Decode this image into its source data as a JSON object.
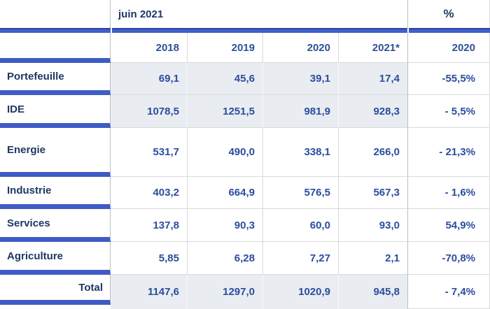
{
  "colors": {
    "bar_blue": "#4060c8",
    "bar_blue_dark_edge": "#2e41a8",
    "header_navy": "#1f3864",
    "value_blue": "#2c4d9e",
    "row_highlight": "#e9edf2",
    "grid_line": "#d9d9d9"
  },
  "chart_data": {
    "type": "table",
    "title": "juin 2021",
    "group_headers": {
      "period": "juin 2021",
      "percent": "%"
    },
    "year_headers": [
      "2018",
      "2019",
      "2020",
      "2021*"
    ],
    "percent_subheader": "2020",
    "rows": [
      {
        "label": "Portefeuille",
        "values": [
          "69,1",
          "45,6",
          "39,1",
          "17,4"
        ],
        "percent": "-55,5%",
        "highlight": true
      },
      {
        "label": "IDE",
        "values": [
          "1078,5",
          "1251,5",
          "981,9",
          "928,3"
        ],
        "percent": "- 5,5%",
        "highlight": true
      },
      {
        "label": "Energie",
        "values": [
          "531,7",
          "490,0",
          "338,1",
          "266,0"
        ],
        "percent": "- 21,3%",
        "highlight": false
      },
      {
        "label": "Industrie",
        "values": [
          "403,2",
          "664,9",
          "576,5",
          "567,3"
        ],
        "percent": "- 1,6%",
        "highlight": false
      },
      {
        "label": "Services",
        "values": [
          "137,8",
          "90,3",
          "60,0",
          "93,0"
        ],
        "percent": "54,9%",
        "highlight": false
      },
      {
        "label": "Agriculture",
        "values": [
          "5,85",
          "6,28",
          "7,27",
          "2,1"
        ],
        "percent": "-70,8%",
        "highlight": false
      },
      {
        "label": "Total",
        "values": [
          "1147,6",
          "1297,0",
          "1020,9",
          "945,8"
        ],
        "percent": "- 7,4%",
        "highlight": true,
        "is_total": true
      }
    ]
  }
}
